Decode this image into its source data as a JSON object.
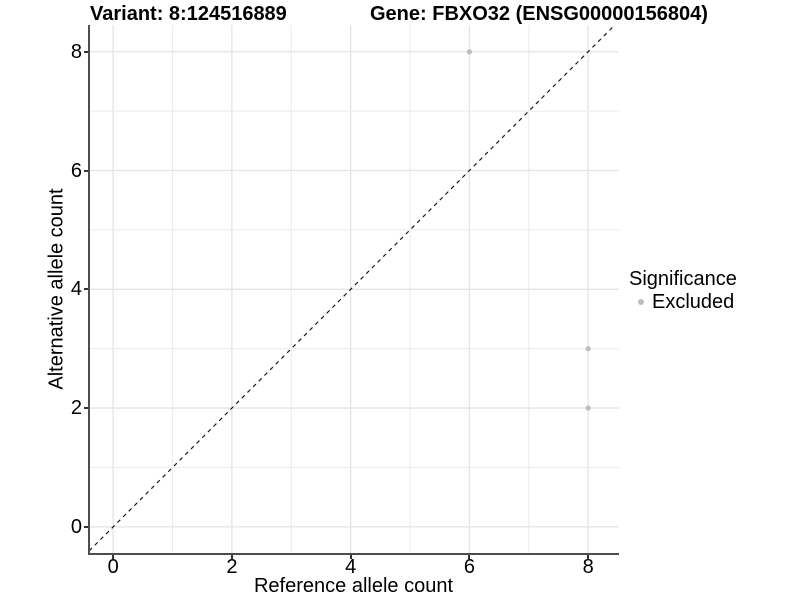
{
  "chart_data": {
    "type": "scatter",
    "title_left": "Variant: 8:124516889",
    "title_right": "Gene: FBXO32 (ENSG00000156804)",
    "xlabel": "Reference allele count",
    "ylabel": "Alternative allele count",
    "xlim": [
      -0.39,
      8.52
    ],
    "ylim": [
      -0.44,
      8.45
    ],
    "xticks": [
      0,
      2,
      4,
      6,
      8
    ],
    "yticks": [
      0,
      2,
      4,
      6,
      8
    ],
    "gridlines": {
      "x": [
        0,
        1,
        2,
        3,
        4,
        5,
        6,
        7,
        8
      ],
      "y": [
        0,
        1,
        2,
        3,
        4,
        5,
        6,
        7,
        8
      ]
    },
    "grid": true,
    "series": [
      {
        "name": "Excluded",
        "color": "#bdbdbd",
        "point_radius": 2.6,
        "points": [
          {
            "x": 6,
            "y": 8
          },
          {
            "x": 8,
            "y": 3
          },
          {
            "x": 8,
            "y": 2
          }
        ]
      }
    ],
    "reference_line": {
      "type": "identity",
      "style": "dashed",
      "color": "#1a1a1a",
      "from": -0.5,
      "to": 9
    },
    "legend": {
      "title": "Significance",
      "position": "right",
      "items": [
        {
          "label": "Excluded",
          "color": "#bdbdbd"
        }
      ]
    },
    "colors": {
      "background": "#ffffff",
      "grid_major": "#e4e4e4",
      "grid_minor": "#ebebeb",
      "axis_line": "#4d4d4d",
      "tick_mark": "#333333",
      "text": "#000000",
      "point": "#bdbdbd"
    }
  }
}
